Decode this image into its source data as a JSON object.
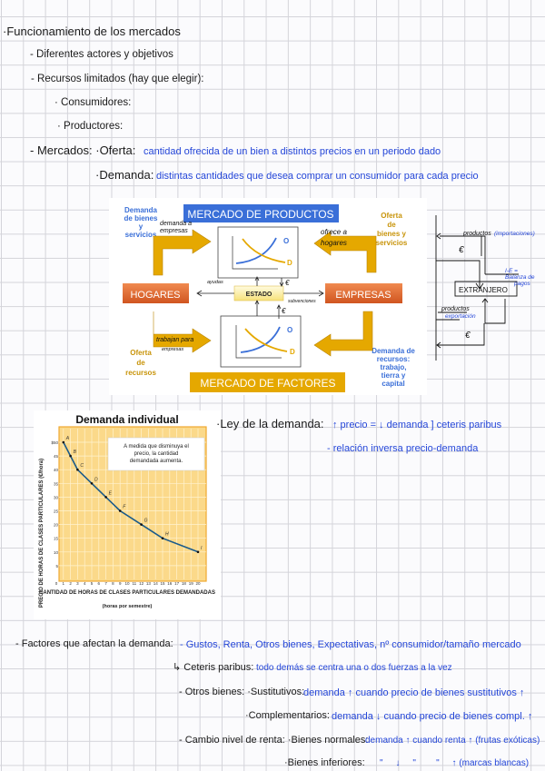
{
  "notes": {
    "title": "·Funcionamiento de los mercados",
    "actors": "- Diferentes actores y objetivos",
    "resources": "- Recursos limitados (hay que elegir):",
    "consumers": "· Consumidores:",
    "producers": "· Productores:",
    "markets_label": "- Mercados: ·Oferta:",
    "supply_def": "cantidad ofrecida de un bien a distintos precios en un periodo dado",
    "demand_label": "·Demanda:",
    "demand_def": "distintas cantidades que desea comprar un consumidor para cada precio"
  },
  "diagram": {
    "products_market": "MERCADO DE PRODUCTOS",
    "factors_market": "MERCADO DE FACTORES",
    "households": "HOGARES",
    "firms": "EMPRESAS",
    "state": "ESTADO",
    "demand_goods": [
      "Demanda",
      "de bienes",
      "y",
      "servicios"
    ],
    "supply_goods": [
      "Oferta",
      "de",
      "bienes y",
      "servicios"
    ],
    "supply_resources": [
      "Oferta",
      "de",
      "recursos"
    ],
    "demand_resources": [
      "Demanda de",
      "recursos:",
      "trabajo,",
      "tierra y",
      "capital"
    ],
    "curve_o": "O",
    "curve_d": "D",
    "hand_demand_firms": [
      "demanda a",
      "empresas"
    ],
    "hand_offer_households": [
      "ofrece a",
      "hogares"
    ],
    "hand_work_for": [
      "trabajan para",
      "empresas"
    ],
    "hand_aid": "ayudas",
    "hand_subsidies": "subvenciones",
    "euro": "€",
    "colors": {
      "blue": "#3a6fd8",
      "gold": "#e5a800",
      "orange": "#e06a30"
    }
  },
  "sketch": {
    "imports": "productos",
    "imports_note": "(importaciones)",
    "euro": "€",
    "abroad": "EXTRANJERO",
    "balance": [
      "I-E =",
      "Balanza de",
      "pagos"
    ],
    "exports": "productos",
    "exports_note": "exportación"
  },
  "chart_data": {
    "type": "line",
    "title": "Demanda individual",
    "annotation": "A medida que disminuya el precio, la cantidad demandada aumenta.",
    "ylabel": "PRECIO DE HORAS DE CLASES PARTICULARES (€/hora)",
    "xlabel": "CANTIDAD DE HORAS DE CLASES PARTICULARES DEMANDADAS",
    "xlabel_sub": "(horas por semestre)",
    "xlim": [
      0,
      20
    ],
    "ylim": [
      0,
      50
    ],
    "xticks": [
      0,
      1,
      2,
      3,
      4,
      5,
      6,
      7,
      8,
      9,
      10,
      11,
      12,
      13,
      14,
      15,
      16,
      17,
      18,
      19,
      20
    ],
    "yticks": [
      "5",
      "10",
      "15",
      "20",
      "25",
      "30",
      "35",
      "40",
      "45",
      "$50"
    ],
    "points": [
      {
        "label": "A",
        "x": 1,
        "y": 50
      },
      {
        "label": "B",
        "x": 2,
        "y": 45
      },
      {
        "label": "C",
        "x": 3,
        "y": 40
      },
      {
        "label": "D",
        "x": 5,
        "y": 35
      },
      {
        "label": "E",
        "x": 7,
        "y": 30
      },
      {
        "label": "F",
        "x": 9,
        "y": 25
      },
      {
        "label": "G",
        "x": 12,
        "y": 20
      },
      {
        "label": "H",
        "x": 15,
        "y": 15
      },
      {
        "label": "I",
        "x": 20,
        "y": 10
      }
    ],
    "grid": true,
    "colors": {
      "line": "#1a5a8a",
      "background": "#fbd98a",
      "grid": "#fff3d0"
    }
  },
  "law": {
    "label": "·Ley de la demanda:",
    "rule": "↑ precio = ↓ demanda ] ceteris paribus",
    "relation": "- relación inversa precio-demanda"
  },
  "factors": {
    "label": "- Factores que afectan la demanda:",
    "list": "- Gustos, Renta, Otros bienes, Expectativas, nº consumidor/tamaño mercado",
    "ceteris_label": "↳ Ceteris paribus:",
    "ceteris_def": "todo demás se centra una o dos fuerzas a la vez",
    "other_goods_label": "- Otros bienes: ·Sustitutivos:",
    "substitutes_def": "demanda ↑ cuando precio de bienes sustitutivos ↑",
    "complements_label": "·Complementarios:",
    "complements_def": "demanda ↓ cuando precio de bienes compl. ↑",
    "income_label": "- Cambio nivel de renta: ·Bienes normales:",
    "normal_def": "demanda ↑ cuando renta ↑ (frutas exóticas)",
    "inferior_label": "·Bienes inferiores:",
    "inferior_def": "\"     ↓     \"        \"     ↑ (marcas blancas)"
  }
}
